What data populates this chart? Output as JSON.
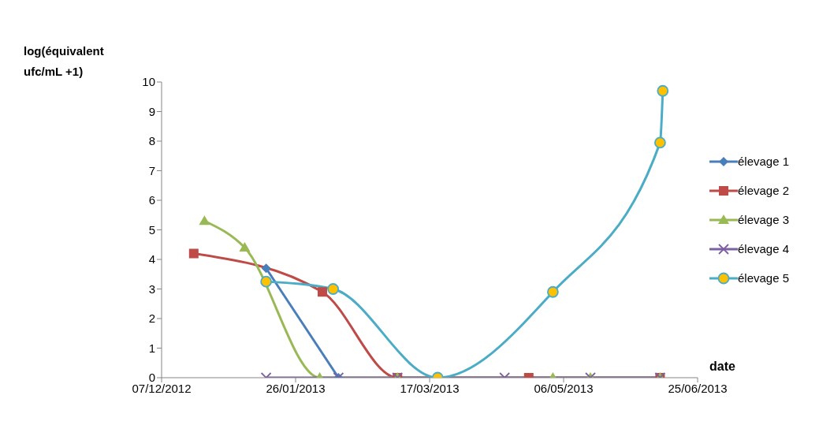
{
  "chart_data": {
    "type": "line",
    "ylabel": "log(équivalent ufc/mL +1)",
    "xlabel": "date",
    "series": [
      {
        "name": "élevage 1",
        "color": "#4a7ebb",
        "marker": "diamond",
        "x": [
          "2013-01-15",
          "2013-02-11"
        ],
        "values": [
          3.7,
          0
        ]
      },
      {
        "name": "élevage 2",
        "color": "#be4b48",
        "marker": "square",
        "x": [
          "2012-12-19",
          "2013-02-05",
          "2013-03-05",
          "2013-04-23",
          "2013-06-11"
        ],
        "values": [
          4.2,
          2.9,
          0,
          0,
          0
        ]
      },
      {
        "name": "élevage 3",
        "color": "#98b954",
        "marker": "triangle",
        "x": [
          "2012-12-23",
          "2013-01-07",
          "2013-02-04",
          "2013-03-05",
          "2013-05-02",
          "2013-05-16",
          "2013-06-11"
        ],
        "values": [
          5.3,
          4.4,
          0,
          0,
          0,
          0,
          0
        ]
      },
      {
        "name": "élevage 4",
        "color": "#7d60a0",
        "marker": "cross",
        "x": [
          "2013-01-15",
          "2013-02-11",
          "2013-03-05",
          "2013-04-14",
          "2013-05-16",
          "2013-06-11"
        ],
        "values": [
          0,
          0,
          0,
          0,
          0,
          0
        ]
      },
      {
        "name": "élevage 5",
        "color": "#4bacc6",
        "marker": "circle",
        "x": [
          "2013-01-15",
          "2013-02-09",
          "2013-03-20",
          "2013-05-02",
          "2013-06-11",
          "2013-06-12"
        ],
        "values": [
          3.25,
          3.0,
          0,
          2.9,
          7.95,
          9.7
        ]
      }
    ],
    "xlim": [
      "2012-12-07",
      "2013-06-25"
    ],
    "xticks": [
      {
        "value": "2012-12-07",
        "label": "07/12/2012"
      },
      {
        "value": "2013-01-26",
        "label": "26/01/2013"
      },
      {
        "value": "2013-03-17",
        "label": "17/03/2013"
      },
      {
        "value": "2013-05-06",
        "label": "06/05/2013"
      },
      {
        "value": "2013-06-25",
        "label": "25/06/2013"
      }
    ],
    "ylim": [
      0,
      10
    ],
    "yticks": [
      0,
      1,
      2,
      3,
      4,
      5,
      6,
      7,
      8,
      9,
      10
    ],
    "legend": "right"
  }
}
